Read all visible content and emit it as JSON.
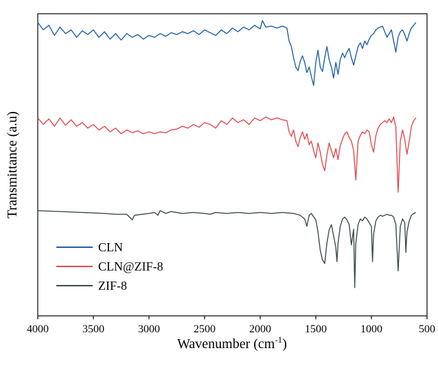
{
  "chart_data": {
    "type": "line",
    "title": "",
    "xlabel": "Wavenumber (cm",
    "xlabel_sup": "-1",
    "xlabel_tail": ")",
    "ylabel": "Transmittance (a.u)",
    "xlim": [
      4000,
      500
    ],
    "x_reversed": true,
    "y_ticks_shown": false,
    "grid": false,
    "legend_position": "bottom-left",
    "x_ticks": [
      "4000",
      "3500",
      "3000",
      "2500",
      "2000",
      "1500",
      "1000",
      "500"
    ],
    "series": [
      {
        "name": "CLN",
        "color": "#1f5fa8",
        "offset": 2.0,
        "points": [
          [
            4000,
            0.98
          ],
          [
            3950,
            0.9
          ],
          [
            3900,
            0.95
          ],
          [
            3850,
            0.84
          ],
          [
            3800,
            0.93
          ],
          [
            3750,
            0.86
          ],
          [
            3700,
            0.9
          ],
          [
            3650,
            0.82
          ],
          [
            3600,
            0.89
          ],
          [
            3550,
            0.85
          ],
          [
            3500,
            0.9
          ],
          [
            3450,
            0.82
          ],
          [
            3400,
            0.88
          ],
          [
            3350,
            0.8
          ],
          [
            3300,
            0.86
          ],
          [
            3250,
            0.79
          ],
          [
            3200,
            0.86
          ],
          [
            3150,
            0.82
          ],
          [
            3100,
            0.85
          ],
          [
            3050,
            0.8
          ],
          [
            3000,
            0.84
          ],
          [
            2950,
            0.82
          ],
          [
            2900,
            0.86
          ],
          [
            2850,
            0.83
          ],
          [
            2800,
            0.87
          ],
          [
            2750,
            0.85
          ],
          [
            2700,
            0.88
          ],
          [
            2650,
            0.86
          ],
          [
            2600,
            0.89
          ],
          [
            2550,
            0.85
          ],
          [
            2500,
            0.9
          ],
          [
            2450,
            0.87
          ],
          [
            2400,
            0.84
          ],
          [
            2350,
            0.9
          ],
          [
            2300,
            0.86
          ],
          [
            2250,
            0.92
          ],
          [
            2200,
            0.88
          ],
          [
            2150,
            0.93
          ],
          [
            2100,
            0.9
          ],
          [
            2050,
            0.95
          ],
          [
            2000,
            0.91
          ],
          [
            1980,
            1.0
          ],
          [
            1950,
            0.93
          ],
          [
            1900,
            0.94
          ],
          [
            1850,
            0.92
          ],
          [
            1800,
            0.94
          ],
          [
            1760,
            0.92
          ],
          [
            1740,
            0.78
          ],
          [
            1720,
            0.72
          ],
          [
            1700,
            0.6
          ],
          [
            1680,
            0.5
          ],
          [
            1660,
            0.46
          ],
          [
            1640,
            0.56
          ],
          [
            1620,
            0.62
          ],
          [
            1600,
            0.55
          ],
          [
            1580,
            0.44
          ],
          [
            1560,
            0.5
          ],
          [
            1540,
            0.4
          ],
          [
            1520,
            0.3
          ],
          [
            1500,
            0.55
          ],
          [
            1480,
            0.68
          ],
          [
            1460,
            0.5
          ],
          [
            1440,
            0.45
          ],
          [
            1420,
            0.6
          ],
          [
            1400,
            0.72
          ],
          [
            1380,
            0.58
          ],
          [
            1360,
            0.5
          ],
          [
            1340,
            0.38
          ],
          [
            1320,
            0.55
          ],
          [
            1300,
            0.42
          ],
          [
            1280,
            0.58
          ],
          [
            1260,
            0.65
          ],
          [
            1240,
            0.6
          ],
          [
            1220,
            0.66
          ],
          [
            1200,
            0.7
          ],
          [
            1180,
            0.6
          ],
          [
            1160,
            0.52
          ],
          [
            1140,
            0.62
          ],
          [
            1120,
            0.72
          ],
          [
            1100,
            0.76
          ],
          [
            1080,
            0.7
          ],
          [
            1060,
            0.78
          ],
          [
            1040,
            0.74
          ],
          [
            1020,
            0.8
          ],
          [
            1000,
            0.84
          ],
          [
            980,
            0.86
          ],
          [
            960,
            0.9
          ],
          [
            940,
            0.92
          ],
          [
            920,
            0.93
          ],
          [
            900,
            0.94
          ],
          [
            880,
            0.88
          ],
          [
            860,
            0.82
          ],
          [
            840,
            0.86
          ],
          [
            820,
            0.9
          ],
          [
            800,
            0.78
          ],
          [
            780,
            0.66
          ],
          [
            760,
            0.82
          ],
          [
            740,
            0.88
          ],
          [
            720,
            0.9
          ],
          [
            700,
            0.85
          ],
          [
            680,
            0.78
          ],
          [
            660,
            0.86
          ],
          [
            640,
            0.92
          ],
          [
            620,
            0.95
          ],
          [
            600,
            0.98
          ]
        ]
      },
      {
        "name": "CLN@ZIF-8",
        "color": "#e5484d",
        "offset": 1.0,
        "points": [
          [
            4000,
            0.95
          ],
          [
            3950,
            0.88
          ],
          [
            3900,
            0.94
          ],
          [
            3850,
            0.86
          ],
          [
            3800,
            0.95
          ],
          [
            3750,
            0.87
          ],
          [
            3700,
            0.93
          ],
          [
            3650,
            0.86
          ],
          [
            3600,
            0.9
          ],
          [
            3550,
            0.84
          ],
          [
            3500,
            0.88
          ],
          [
            3450,
            0.82
          ],
          [
            3400,
            0.86
          ],
          [
            3350,
            0.8
          ],
          [
            3300,
            0.84
          ],
          [
            3250,
            0.78
          ],
          [
            3200,
            0.82
          ],
          [
            3150,
            0.79
          ],
          [
            3100,
            0.81
          ],
          [
            3050,
            0.78
          ],
          [
            3000,
            0.8
          ],
          [
            2950,
            0.78
          ],
          [
            2900,
            0.8
          ],
          [
            2850,
            0.79
          ],
          [
            2800,
            0.82
          ],
          [
            2750,
            0.83
          ],
          [
            2700,
            0.86
          ],
          [
            2650,
            0.84
          ],
          [
            2600,
            0.88
          ],
          [
            2550,
            0.85
          ],
          [
            2500,
            0.9
          ],
          [
            2450,
            0.88
          ],
          [
            2400,
            0.84
          ],
          [
            2350,
            0.92
          ],
          [
            2300,
            0.88
          ],
          [
            2250,
            0.95
          ],
          [
            2200,
            0.9
          ],
          [
            2150,
            0.93
          ],
          [
            2100,
            0.88
          ],
          [
            2050,
            0.95
          ],
          [
            2000,
            0.92
          ],
          [
            1950,
            0.96
          ],
          [
            1900,
            0.93
          ],
          [
            1850,
            0.95
          ],
          [
            1800,
            0.93
          ],
          [
            1760,
            0.92
          ],
          [
            1740,
            0.8
          ],
          [
            1720,
            0.75
          ],
          [
            1700,
            0.82
          ],
          [
            1680,
            0.7
          ],
          [
            1660,
            0.64
          ],
          [
            1640,
            0.74
          ],
          [
            1620,
            0.8
          ],
          [
            1600,
            0.72
          ],
          [
            1580,
            0.78
          ],
          [
            1560,
            0.66
          ],
          [
            1540,
            0.7
          ],
          [
            1520,
            0.6
          ],
          [
            1500,
            0.52
          ],
          [
            1480,
            0.68
          ],
          [
            1460,
            0.58
          ],
          [
            1440,
            0.45
          ],
          [
            1420,
            0.38
          ],
          [
            1400,
            0.55
          ],
          [
            1380,
            0.68
          ],
          [
            1360,
            0.6
          ],
          [
            1340,
            0.52
          ],
          [
            1320,
            0.62
          ],
          [
            1300,
            0.5
          ],
          [
            1280,
            0.65
          ],
          [
            1260,
            0.72
          ],
          [
            1240,
            0.78
          ],
          [
            1220,
            0.8
          ],
          [
            1200,
            0.74
          ],
          [
            1180,
            0.7
          ],
          [
            1160,
            0.6
          ],
          [
            1140,
            0.28
          ],
          [
            1120,
            0.7
          ],
          [
            1100,
            0.76
          ],
          [
            1080,
            0.8
          ],
          [
            1060,
            0.78
          ],
          [
            1040,
            0.82
          ],
          [
            1020,
            0.8
          ],
          [
            1000,
            0.66
          ],
          [
            980,
            0.58
          ],
          [
            960,
            0.76
          ],
          [
            940,
            0.84
          ],
          [
            920,
            0.88
          ],
          [
            900,
            0.9
          ],
          [
            880,
            0.92
          ],
          [
            860,
            0.9
          ],
          [
            840,
            0.94
          ],
          [
            820,
            0.9
          ],
          [
            800,
            0.96
          ],
          [
            780,
            0.85
          ],
          [
            760,
            0.15
          ],
          [
            740,
            0.7
          ],
          [
            720,
            0.82
          ],
          [
            700,
            0.72
          ],
          [
            680,
            0.56
          ],
          [
            660,
            0.7
          ],
          [
            640,
            0.86
          ],
          [
            620,
            0.92
          ],
          [
            600,
            0.95
          ]
        ]
      },
      {
        "name": "ZIF-8",
        "color": "#3f4a4d",
        "offset": 0.0,
        "points": [
          [
            4000,
            0.95
          ],
          [
            3800,
            0.94
          ],
          [
            3600,
            0.93
          ],
          [
            3400,
            0.92
          ],
          [
            3300,
            0.91
          ],
          [
            3200,
            0.91
          ],
          [
            3150,
            0.85
          ],
          [
            3130,
            0.9
          ],
          [
            3000,
            0.92
          ],
          [
            2950,
            0.93
          ],
          [
            2920,
            0.9
          ],
          [
            2900,
            0.95
          ],
          [
            2850,
            0.92
          ],
          [
            2800,
            0.94
          ],
          [
            2700,
            0.92
          ],
          [
            2600,
            0.93
          ],
          [
            2500,
            0.92
          ],
          [
            2450,
            0.91
          ],
          [
            2400,
            0.93
          ],
          [
            2300,
            0.92
          ],
          [
            2200,
            0.93
          ],
          [
            2100,
            0.92
          ],
          [
            2000,
            0.93
          ],
          [
            1900,
            0.92
          ],
          [
            1800,
            0.93
          ],
          [
            1700,
            0.92
          ],
          [
            1640,
            0.9
          ],
          [
            1600,
            0.86
          ],
          [
            1580,
            0.78
          ],
          [
            1560,
            0.9
          ],
          [
            1540,
            0.92
          ],
          [
            1500,
            0.85
          ],
          [
            1480,
            0.72
          ],
          [
            1460,
            0.52
          ],
          [
            1440,
            0.42
          ],
          [
            1420,
            0.38
          ],
          [
            1400,
            0.6
          ],
          [
            1380,
            0.74
          ],
          [
            1360,
            0.8
          ],
          [
            1340,
            0.68
          ],
          [
            1320,
            0.55
          ],
          [
            1310,
            0.4
          ],
          [
            1300,
            0.6
          ],
          [
            1280,
            0.78
          ],
          [
            1260,
            0.86
          ],
          [
            1240,
            0.88
          ],
          [
            1220,
            0.85
          ],
          [
            1200,
            0.8
          ],
          [
            1180,
            0.58
          ],
          [
            1160,
            0.75
          ],
          [
            1150,
            0.12
          ],
          [
            1140,
            0.6
          ],
          [
            1120,
            0.8
          ],
          [
            1100,
            0.86
          ],
          [
            1080,
            0.84
          ],
          [
            1060,
            0.88
          ],
          [
            1040,
            0.86
          ],
          [
            1020,
            0.82
          ],
          [
            1000,
            0.78
          ],
          [
            990,
            0.4
          ],
          [
            980,
            0.7
          ],
          [
            960,
            0.84
          ],
          [
            940,
            0.88
          ],
          [
            920,
            0.9
          ],
          [
            900,
            0.89
          ],
          [
            880,
            0.9
          ],
          [
            860,
            0.91
          ],
          [
            840,
            0.9
          ],
          [
            820,
            0.9
          ],
          [
            800,
            0.88
          ],
          [
            780,
            0.8
          ],
          [
            760,
            0.3
          ],
          [
            740,
            0.78
          ],
          [
            720,
            0.86
          ],
          [
            700,
            0.82
          ],
          [
            690,
            0.5
          ],
          [
            680,
            0.72
          ],
          [
            660,
            0.84
          ],
          [
            640,
            0.9
          ],
          [
            620,
            0.92
          ],
          [
            600,
            0.93
          ]
        ]
      }
    ]
  }
}
